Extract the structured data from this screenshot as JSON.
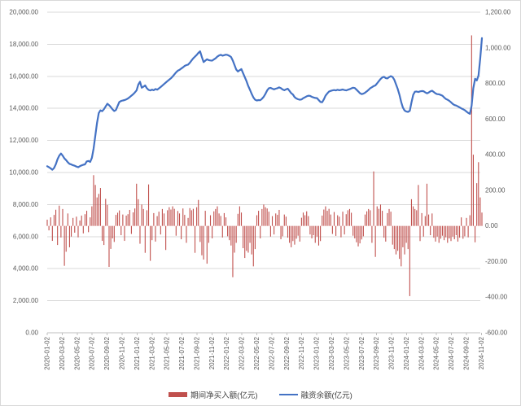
{
  "chart": {
    "title": "",
    "legend": [
      {
        "label": "期间净买入额(亿元)",
        "type": "bar",
        "color": "#C0504D"
      },
      {
        "label": "融资余额(亿元)",
        "type": "line",
        "color": "#4472C4"
      }
    ],
    "left_axis": {
      "min": 0,
      "max": 20000,
      "step": 2000,
      "labels": [
        "20,000.00",
        "18,000.00",
        "16,000.00",
        "14,000.00",
        "12,000.00",
        "10,000.00",
        "8,000.00",
        "6,000.00",
        "4,000.00",
        "2,000.00",
        "0.00"
      ]
    },
    "right_axis": {
      "min": -600,
      "max": 1200,
      "step": 200,
      "labels": [
        "1,200.00",
        "1,000.00",
        "800.00",
        "600.00",
        "400.00",
        "200.00",
        "0.00",
        "-200.00",
        "-400.00",
        "-600.00"
      ]
    },
    "x_tick_labels": [
      "2020-01-02",
      "2020-03-02",
      "2020-05-02",
      "2020-07-02",
      "2020-09-02",
      "2020-11-02",
      "2021-01-02",
      "2021-03-02",
      "2021-05-02",
      "2021-07-02",
      "2021-09-02",
      "2021-11-02",
      "2022-01-02",
      "2022-03-02",
      "2022-05-02",
      "2022-07-02",
      "2022-09-02",
      "2022-11-02",
      "2023-01-02",
      "2023-03-02",
      "2023-05-02",
      "2023-07-02",
      "2023-09-02",
      "2023-11-02",
      "2024-01-02",
      "2024-03-02",
      "2024-05-02",
      "2024-07-02",
      "2024-09-02",
      "2024-11-02"
    ],
    "colors": {
      "grid": "#D9D9D9",
      "axis_line": "#BFBFBF",
      "tick_text": "#595959",
      "bar": "#C0504D",
      "line": "#4472C4"
    }
  },
  "chart_data": {
    "type": "bar+line dual-axis",
    "x_unit": "weekly samples, 2020-01-02 through 2024-11-15",
    "x_tick_interval_days": 61,
    "total_days": 1771,
    "series": [
      {
        "name": "期间净买入额(亿元)",
        "type": "bar",
        "axis": "right",
        "ylim": [
          -600,
          1200
        ],
        "values": [
          35,
          -25,
          48,
          -84,
          62,
          91,
          -107,
          114,
          -65,
          95,
          -224,
          -145,
          70,
          -120,
          -60,
          45,
          -38,
          52,
          -64,
          30,
          58,
          -42,
          66,
          85,
          -35,
          48,
          110,
          285,
          230,
          160,
          180,
          213,
          -84,
          -107,
          152,
          118,
          -230,
          -129,
          -70,
          -90,
          62,
          74,
          87,
          -52,
          64,
          -84,
          58,
          66,
          90,
          -45,
          76,
          98,
          237,
          150,
          -100,
          120,
          95,
          -151,
          88,
          233,
          -196,
          -80,
          72,
          -88,
          55,
          80,
          -48,
          95,
          70,
          -135,
          88,
          105,
          92,
          110,
          96,
          -55,
          84,
          70,
          -75,
          98,
          62,
          -95,
          45,
          100,
          88,
          96,
          -151,
          105,
          146,
          -90,
          -165,
          -189,
          85,
          -212,
          -95,
          60,
          -70,
          82,
          95,
          110,
          70,
          56,
          -65,
          72,
          48,
          -58,
          -80,
          -110,
          -288,
          -150,
          -95,
          68,
          110,
          75,
          -125,
          -180,
          -140,
          -150,
          -95,
          -160,
          -227,
          -130,
          60,
          85,
          -70,
          95,
          120,
          105,
          98,
          80,
          -60,
          55,
          -48,
          70,
          62,
          90,
          -75,
          -58,
          64,
          52,
          -66,
          -95,
          -120,
          -85,
          -105,
          -72,
          -55,
          -88,
          46,
          75,
          60,
          82,
          55,
          -48,
          -70,
          -52,
          -95,
          -60,
          -110,
          -85,
          58,
          92,
          110,
          85,
          96,
          64,
          -45,
          78,
          -56,
          60,
          52,
          -64,
          80,
          -48,
          66,
          88,
          95,
          74,
          -55,
          -70,
          -92,
          -115,
          -98,
          -76,
          -58,
          64,
          82,
          95,
          88,
          -95,
          306,
          -174,
          110,
          96,
          120,
          85,
          -66,
          -88,
          72,
          95,
          80,
          -105,
          -130,
          -160,
          -140,
          -185,
          -227,
          -120,
          -160,
          -95,
          -130,
          -394,
          150,
          110,
          95,
          88,
          230,
          -85,
          72,
          -60,
          55,
          237,
          64,
          -52,
          70,
          -66,
          -88,
          -60,
          -95,
          -72,
          -55,
          -80,
          -64,
          -95,
          -70,
          -85,
          -60,
          -75,
          -52,
          -88,
          -66,
          48,
          -72,
          -58,
          45,
          -64,
          60,
          1070,
          400,
          -92,
          240,
          358,
          160,
          75
        ]
      },
      {
        "name": "融资余额(亿元)",
        "type": "line",
        "axis": "left",
        "ylim": [
          0,
          20000
        ],
        "values": [
          10390,
          10330,
          10260,
          10175,
          10280,
          10520,
          10830,
          11050,
          11183,
          11050,
          10880,
          10770,
          10640,
          10540,
          10500,
          10450,
          10420,
          10370,
          10330,
          10390,
          10440,
          10480,
          10510,
          10690,
          10720,
          10660,
          10920,
          11500,
          12300,
          13100,
          13700,
          13880,
          13820,
          13950,
          14120,
          14290,
          14200,
          14080,
          13940,
          13830,
          13900,
          14150,
          14400,
          14460,
          14490,
          14520,
          14560,
          14620,
          14700,
          14790,
          14880,
          14990,
          15120,
          15480,
          15660,
          15290,
          15350,
          15430,
          15260,
          15150,
          15120,
          15170,
          15130,
          15210,
          15170,
          15250,
          15330,
          15420,
          15520,
          15610,
          15700,
          15790,
          15880,
          15990,
          16120,
          16250,
          16350,
          16400,
          16480,
          16560,
          16650,
          16700,
          16730,
          16850,
          16990,
          17120,
          17230,
          17330,
          17460,
          17560,
          17200,
          16890,
          16980,
          17060,
          17010,
          16990,
          16980,
          17050,
          17120,
          17230,
          17300,
          17340,
          17290,
          17320,
          17350,
          17330,
          17280,
          17210,
          16980,
          16700,
          16420,
          16300,
          16380,
          16450,
          16200,
          15950,
          15700,
          15400,
          15150,
          14900,
          14680,
          14540,
          14490,
          14520,
          14510,
          14600,
          14720,
          14910,
          15120,
          15260,
          15280,
          15230,
          15190,
          15230,
          15260,
          15310,
          15260,
          15180,
          15130,
          15190,
          15230,
          15090,
          14950,
          14870,
          14700,
          14620,
          14570,
          14540,
          14560,
          14640,
          14690,
          14750,
          14790,
          14780,
          14720,
          14680,
          14650,
          14640,
          14520,
          14400,
          14380,
          14560,
          14790,
          14930,
          15050,
          15090,
          15120,
          15140,
          15120,
          15160,
          15130,
          15150,
          15180,
          15140,
          15120,
          15160,
          15200,
          15250,
          15290,
          15270,
          15170,
          15060,
          14950,
          14890,
          14920,
          14980,
          15060,
          15150,
          15260,
          15320,
          15390,
          15430,
          15560,
          15700,
          15830,
          15930,
          15970,
          15890,
          15870,
          15950,
          16010,
          15960,
          15780,
          15500,
          15210,
          14850,
          14400,
          14050,
          13870,
          13800,
          13780,
          13850,
          14380,
          14850,
          15040,
          15050,
          15020,
          15060,
          15080,
          15070,
          15000,
          14940,
          14990,
          15060,
          15100,
          15020,
          14940,
          14890,
          14880,
          14840,
          14790,
          14680,
          14590,
          14540,
          14470,
          14380,
          14280,
          14210,
          14180,
          14120,
          14060,
          14000,
          13950,
          13890,
          13800,
          13720,
          13660,
          14150,
          15250,
          15850,
          15740,
          16050,
          17100,
          18380
        ]
      }
    ]
  }
}
